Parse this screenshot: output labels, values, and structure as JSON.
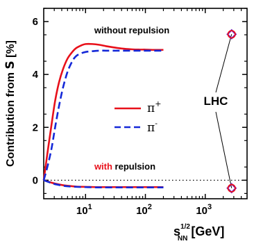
{
  "chart_data": {
    "type": "line",
    "ylabel_prefix": "Contribution from ",
    "ylabel_symbol": "S",
    "ylabel_unit": " [%]",
    "xlabel_base": "s",
    "xlabel_sup": "1/2",
    "xlabel_sub": "NN",
    "xlabel_unit": " [GeV]",
    "xscale": "log",
    "xlim": [
      2,
      5000
    ],
    "ylim": [
      -0.7,
      6.5
    ],
    "x_ticks": [
      {
        "value": 10,
        "base": "10",
        "exp": "1"
      },
      {
        "value": 100,
        "base": "10",
        "exp": "2"
      },
      {
        "value": 1000,
        "base": "10",
        "exp": "3"
      }
    ],
    "y_ticks": [
      0,
      2,
      4,
      6
    ],
    "zero_line": "dotted",
    "annotations": {
      "without": "without repulsion",
      "with_colored": "with",
      "with_rest": " repulsion",
      "lhc": "LHC"
    },
    "legend": [
      {
        "base": "π",
        "sup": "+",
        "color": "#e8101a",
        "dash": "solid"
      },
      {
        "base": "π",
        "sup": "-",
        "color": "#1428d8",
        "dash": "dashed"
      }
    ],
    "series": [
      {
        "curve": "without repulsion",
        "particle": "pi+",
        "color": "#e8101a",
        "dash": "solid",
        "x": [
          2.0,
          2.3,
          2.7,
          3.1,
          3.6,
          4.2,
          5.0,
          6.0,
          7.0,
          8.5,
          10,
          13,
          17,
          22,
          30,
          40,
          60,
          80,
          100,
          130,
          200
        ],
        "y": [
          0.0,
          1.0,
          2.1,
          3.0,
          3.7,
          4.2,
          4.6,
          4.85,
          5.0,
          5.1,
          5.15,
          5.15,
          5.12,
          5.07,
          5.02,
          4.98,
          4.95,
          4.94,
          4.94,
          4.93,
          4.93
        ]
      },
      {
        "curve": "without repulsion",
        "particle": "pi-",
        "color": "#1428d8",
        "dash": "dashed",
        "x": [
          2.0,
          2.3,
          2.7,
          3.1,
          3.6,
          4.2,
          5.0,
          6.0,
          7.0,
          8.5,
          10,
          13,
          17,
          22,
          30,
          40,
          60,
          80,
          100,
          130,
          200
        ],
        "y": [
          0.0,
          0.5,
          1.2,
          2.0,
          2.8,
          3.5,
          4.1,
          4.5,
          4.7,
          4.8,
          4.85,
          4.88,
          4.9,
          4.9,
          4.9,
          4.9,
          4.9,
          4.9,
          4.9,
          4.9,
          4.9
        ]
      },
      {
        "curve": "with repulsion",
        "particle": "pi+",
        "color": "#e8101a",
        "dash": "solid",
        "x": [
          2.0,
          2.5,
          3.0,
          4.0,
          5.0,
          7.0,
          10,
          15,
          20,
          30,
          50,
          100,
          200
        ],
        "y": [
          0.0,
          -0.07,
          -0.12,
          -0.18,
          -0.21,
          -0.24,
          -0.25,
          -0.26,
          -0.26,
          -0.26,
          -0.26,
          -0.26,
          -0.26
        ]
      },
      {
        "curve": "with repulsion",
        "particle": "pi-",
        "color": "#1428d8",
        "dash": "dashed",
        "x": [
          2.0,
          2.5,
          3.0,
          4.0,
          5.0,
          7.0,
          10,
          15,
          20,
          30,
          50,
          100,
          200
        ],
        "y": [
          0.0,
          -0.08,
          -0.14,
          -0.2,
          -0.23,
          -0.25,
          -0.26,
          -0.27,
          -0.27,
          -0.27,
          -0.27,
          -0.27,
          -0.27
        ]
      }
    ],
    "lhc_points": [
      {
        "curve": "without repulsion",
        "x": 2760,
        "y": 5.52
      },
      {
        "curve": "with repulsion",
        "x": 2760,
        "y": -0.3
      }
    ]
  }
}
